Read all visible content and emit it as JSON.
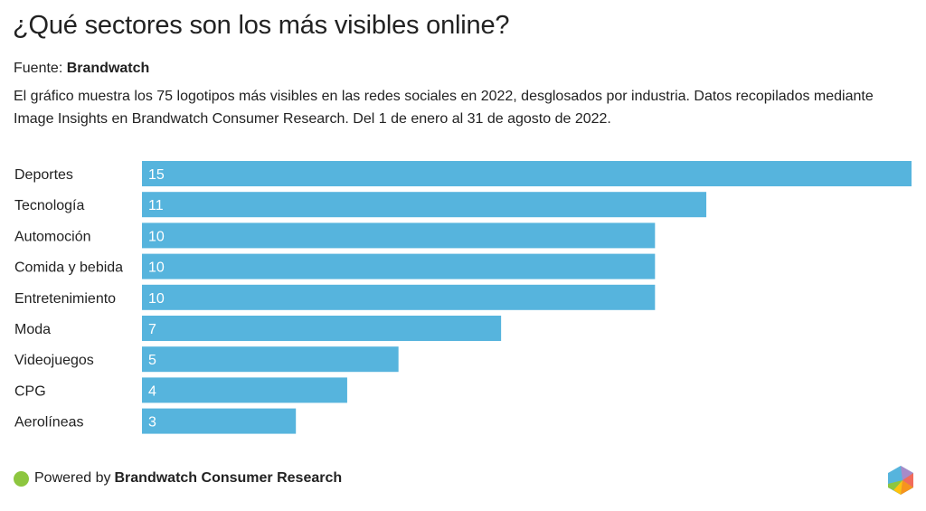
{
  "header": {
    "title": "¿Qué sectores son los más visibles online?",
    "source_label": "Fuente:",
    "source_name": "Brandwatch",
    "description": "El gráfico muestra los 75 logotipos más visibles en las redes sociales en 2022, desglosados por industria. Datos recopilados mediante Image Insights en Brandwatch Consumer Research. Del 1 de enero al 31 de agosto de 2022."
  },
  "footer": {
    "powered_label": "Powered by",
    "powered_name": "Brandwatch Consumer Research",
    "dot_color": "#8dc63f",
    "logo_icon": "brandwatch-hexagon-logo"
  },
  "chart_data": {
    "type": "bar",
    "orientation": "horizontal",
    "title": "¿Qué sectores son los más visibles online?",
    "xlabel": "",
    "ylabel": "",
    "categories": [
      "Deportes",
      "Tecnología",
      "Automoción",
      "Comida y bebida",
      "Entretenimiento",
      "Moda",
      "Videojuegos",
      "CPG",
      "Aerolíneas"
    ],
    "values": [
      15,
      11,
      10,
      10,
      10,
      7,
      5,
      4,
      3
    ],
    "xlim": [
      0,
      15
    ],
    "bar_color": "#56b4dd",
    "data_labels": true,
    "grid": false
  }
}
